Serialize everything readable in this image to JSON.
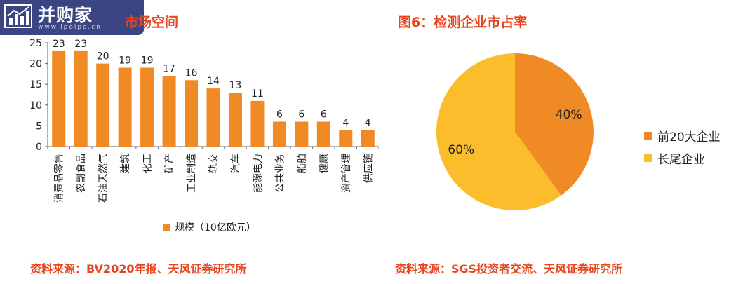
{
  "watermark": {
    "brand": "并购家",
    "url": "www.ipoipo.cn",
    "logo_icon": "bar-chart-logo-icon"
  },
  "left_panel": {
    "title": "市场空间",
    "source": "资料来源：BV2020年报、天风证券研究所"
  },
  "right_panel": {
    "title": "图6：检测企业市占率",
    "source": "资料来源：SGS投资者交流、天风证券研究所"
  },
  "chart_data": [
    {
      "type": "bar",
      "title": "市场空间",
      "categories": [
        "消费品零售",
        "农副食品",
        "石油天然气",
        "建筑",
        "化工",
        "矿产",
        "工业制造",
        "轨交",
        "汽车",
        "能源电力",
        "公共业务",
        "船舶",
        "健康",
        "资产管理",
        "供应链"
      ],
      "series": [
        {
          "name": "规模（10亿欧元）",
          "values": [
            23,
            23,
            20,
            19,
            19,
            17,
            16,
            14,
            13,
            11,
            6,
            6,
            6,
            4,
            4
          ],
          "color": "#f08a24"
        }
      ],
      "ylim": [
        0,
        25
      ],
      "yticks": [
        0,
        5,
        10,
        15,
        20,
        25
      ],
      "grid": false,
      "legend": "bottom",
      "data_labels": true
    },
    {
      "type": "pie",
      "title": "图6：检测企业市占率",
      "slices": [
        {
          "label": "前20大企业",
          "value": 40,
          "display": "40%",
          "color": "#f08a24"
        },
        {
          "label": "长尾企业",
          "value": 60,
          "display": "60%",
          "color": "#fbbd2c"
        }
      ],
      "start_angle_deg": 0,
      "direction": "clockwise",
      "legend": "right"
    }
  ]
}
